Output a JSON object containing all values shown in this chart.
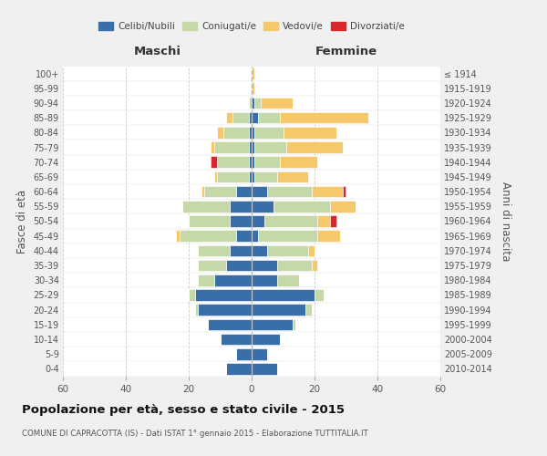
{
  "age_groups": [
    "0-4",
    "5-9",
    "10-14",
    "15-19",
    "20-24",
    "25-29",
    "30-34",
    "35-39",
    "40-44",
    "45-49",
    "50-54",
    "55-59",
    "60-64",
    "65-69",
    "70-74",
    "75-79",
    "80-84",
    "85-89",
    "90-94",
    "95-99",
    "100+"
  ],
  "birth_years": [
    "2010-2014",
    "2005-2009",
    "2000-2004",
    "1995-1999",
    "1990-1994",
    "1985-1989",
    "1980-1984",
    "1975-1979",
    "1970-1974",
    "1965-1969",
    "1960-1964",
    "1955-1959",
    "1950-1954",
    "1945-1949",
    "1940-1944",
    "1935-1939",
    "1930-1934",
    "1925-1929",
    "1920-1924",
    "1915-1919",
    "≤ 1914"
  ],
  "males": {
    "celibi": [
      8,
      5,
      10,
      14,
      17,
      18,
      12,
      8,
      7,
      5,
      7,
      7,
      5,
      1,
      1,
      1,
      1,
      1,
      0,
      0,
      0
    ],
    "coniugati": [
      0,
      0,
      0,
      0,
      1,
      2,
      5,
      9,
      10,
      18,
      13,
      15,
      10,
      10,
      10,
      11,
      8,
      5,
      1,
      0,
      0
    ],
    "vedovi": [
      0,
      0,
      0,
      0,
      0,
      0,
      0,
      0,
      0,
      1,
      0,
      0,
      1,
      1,
      0,
      1,
      2,
      2,
      0,
      0,
      0
    ],
    "divorziati": [
      0,
      0,
      0,
      0,
      0,
      0,
      0,
      0,
      0,
      0,
      0,
      0,
      0,
      0,
      2,
      0,
      0,
      0,
      0,
      0,
      0
    ]
  },
  "females": {
    "nubili": [
      8,
      5,
      9,
      13,
      17,
      20,
      8,
      8,
      5,
      2,
      4,
      7,
      5,
      1,
      1,
      1,
      1,
      2,
      1,
      0,
      0
    ],
    "coniugate": [
      0,
      0,
      0,
      1,
      2,
      3,
      7,
      11,
      13,
      19,
      17,
      18,
      14,
      7,
      8,
      10,
      9,
      7,
      2,
      0,
      0
    ],
    "vedove": [
      0,
      0,
      0,
      0,
      0,
      0,
      0,
      2,
      2,
      7,
      4,
      8,
      10,
      10,
      12,
      18,
      17,
      28,
      10,
      1,
      1
    ],
    "divorziate": [
      0,
      0,
      0,
      0,
      0,
      0,
      0,
      0,
      0,
      0,
      2,
      0,
      1,
      0,
      0,
      0,
      0,
      0,
      0,
      0,
      0
    ]
  },
  "colors": {
    "celibi": "#3a6ea8",
    "coniugati": "#c5d9a8",
    "vedovi": "#f5c96a",
    "divorziati": "#d9262c"
  },
  "xlim": 60,
  "title": "Popolazione per età, sesso e stato civile - 2015",
  "subtitle": "COMUNE DI CAPRACOTTA (IS) - Dati ISTAT 1° gennaio 2015 - Elaborazione TUTTITALIA.IT",
  "ylabel_left": "Fasce di età",
  "ylabel_right": "Anni di nascita",
  "xlabel_left": "Maschi",
  "xlabel_right": "Femmine",
  "bg_color": "#f0f0f0",
  "plot_bg_color": "#ffffff"
}
